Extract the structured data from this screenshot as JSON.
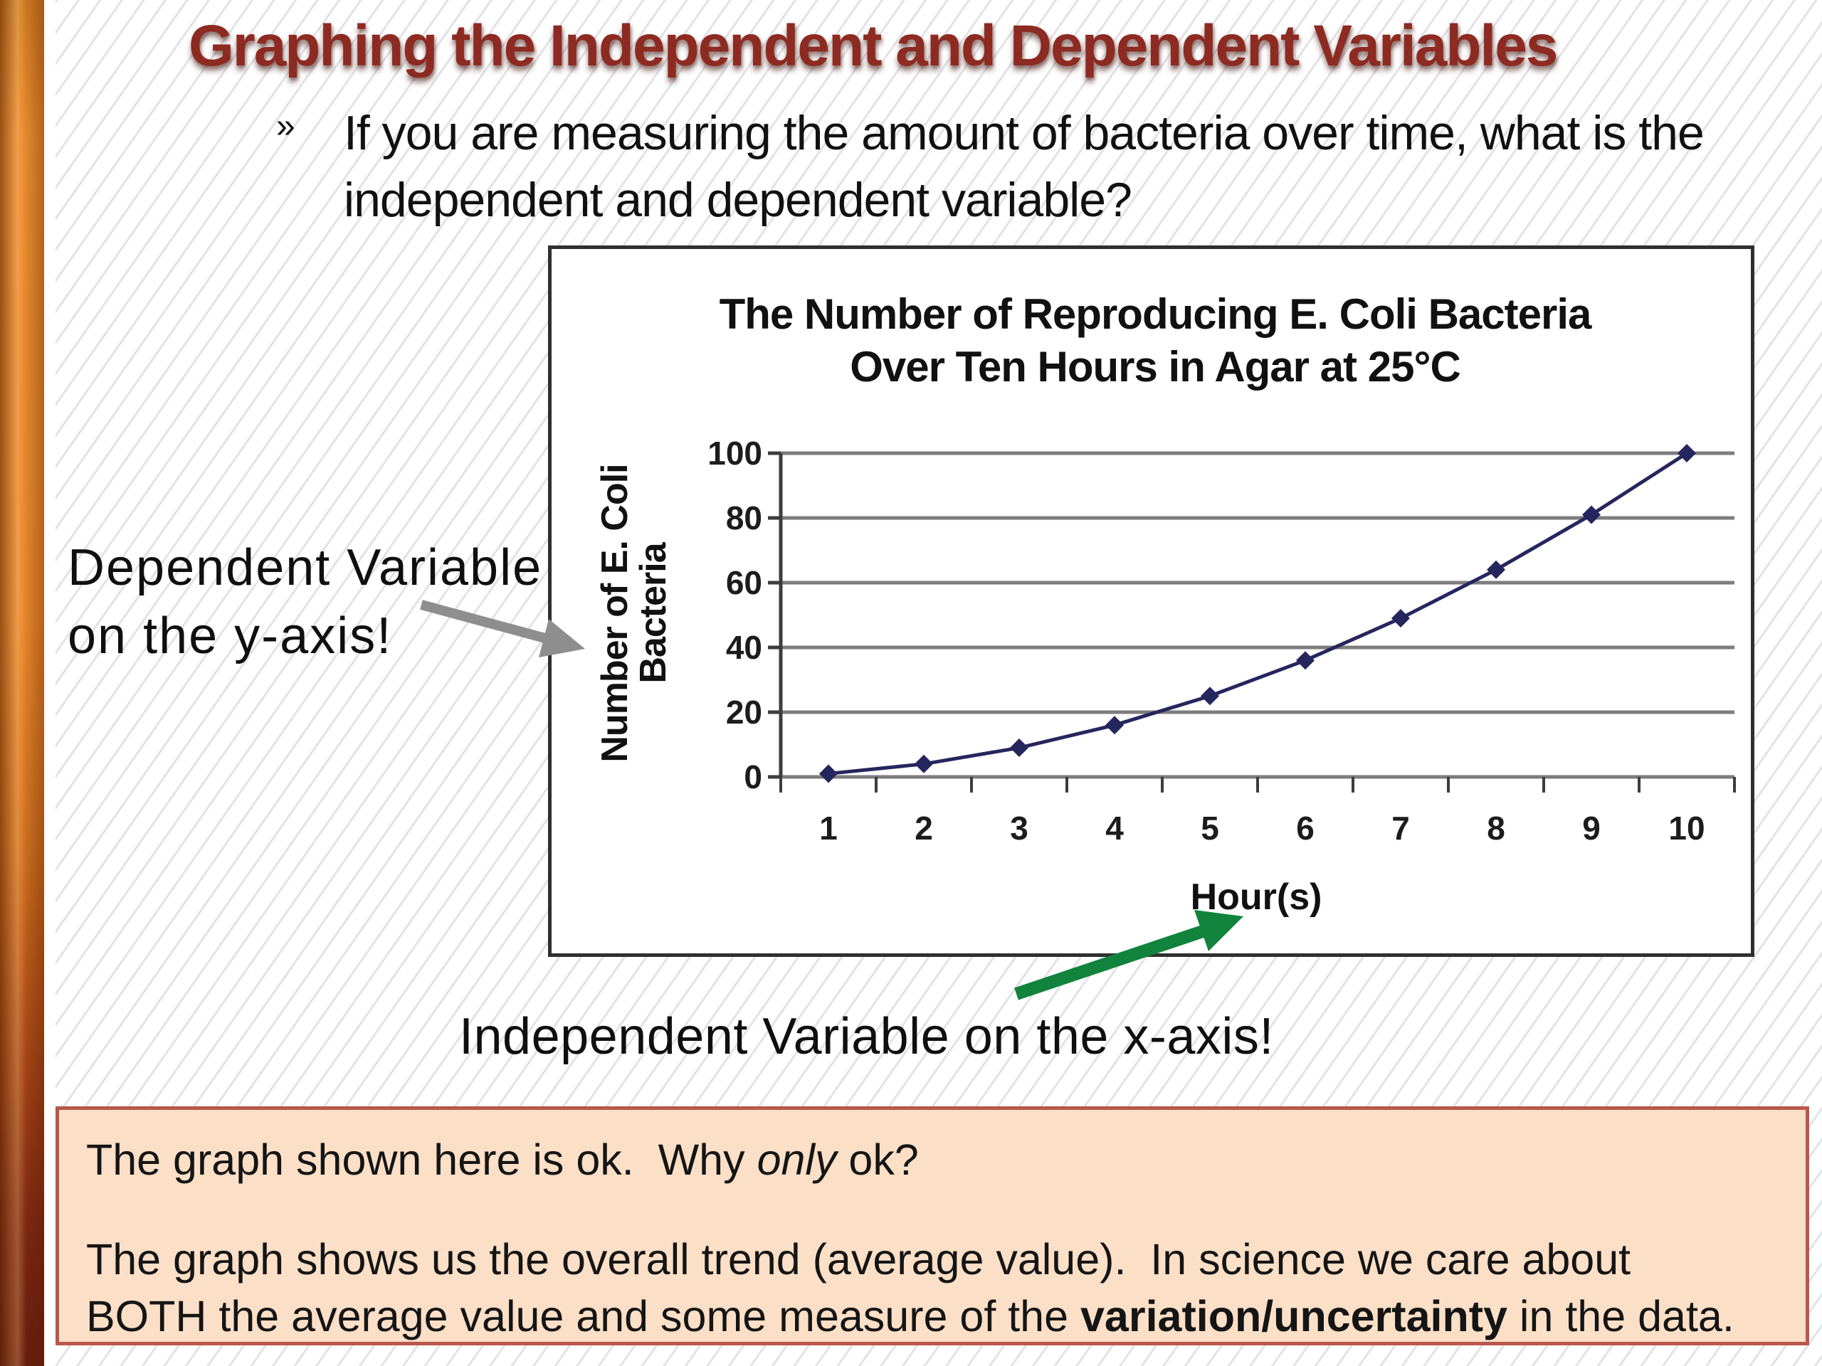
{
  "slide": {
    "title": "Graphing the Independent and Dependent Variables",
    "bullet": {
      "marker": "»",
      "text": "If you are measuring the amount of bacteria over time, what is the independent and dependent variable?"
    },
    "annotations": {
      "dependent_line1": "Dependent Variable",
      "dependent_line2": "on the y-axis!",
      "independent": "Independent Variable on the x-axis!"
    },
    "colors": {
      "title": "#8d2a21",
      "accent_bar_top": "#e8882b",
      "accent_bar_bottom": "#681d0f",
      "note_box_fill": "#fbdfc7",
      "note_box_border": "#b8584b",
      "gray_arrow": "#8e8e8e",
      "green_arrow": "#12833c"
    }
  },
  "chart_data": {
    "type": "line",
    "title_line1": "The Number of Reproducing E. Coli Bacteria",
    "title_line2": "Over Ten Hours in Agar at 25°C",
    "xlabel": "Hour(s)",
    "ylabel_line1": "Number of E. Coli",
    "ylabel_line2": "Bacteria",
    "x": [
      1,
      2,
      3,
      4,
      5,
      6,
      7,
      8,
      9,
      10
    ],
    "values": [
      1,
      4,
      9,
      16,
      25,
      36,
      49,
      64,
      81,
      100
    ],
    "ylim": [
      0,
      100
    ],
    "yticks": [
      0,
      20,
      40,
      60,
      80,
      100
    ],
    "grid": "horizontal",
    "legend": "none",
    "marker": "diamond",
    "line_color": "#26265e"
  },
  "note_box": {
    "line1_pre": "The graph shown here is ok.  Why ",
    "line1_italic": "only",
    "line1_post": " ok?",
    "line2": "The graph shows us the overall trend (average value).  In science we care about",
    "line3_pre": "BOTH the average value and some measure of the ",
    "line3_bold": "variation/uncertainty",
    "line3_post": " in the data."
  }
}
